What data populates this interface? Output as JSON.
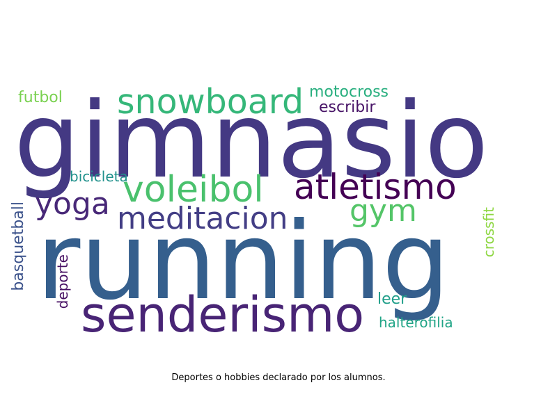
{
  "caption": "Deportes o hobbies declarado por los alumnos.",
  "words": {
    "running": "running",
    "gimnasio": "gimnasio",
    "senderismo": "senderismo",
    "atletismo": "atletismo",
    "snowboard": "snowboard",
    "voleibol": "voleibol",
    "meditacion": "meditacion",
    "yoga": "yoga",
    "gym": "gym",
    "motocross": "motocross",
    "escribir": "escribir",
    "futbol": "futbol",
    "bicicleta": "bicicleta",
    "leer": "leer",
    "halterofilia": "halterofilia",
    "basquetball": "basquetball",
    "deporte": "deporte",
    "crossfit": "crossfit"
  },
  "colors": {
    "background": "#ffffff",
    "caption": "#000000",
    "palette": [
      "#440154",
      "#482475",
      "#443983",
      "#355f8d",
      "#21918c",
      "#29af7f",
      "#35b779",
      "#7ad151",
      "#8fd744"
    ]
  }
}
